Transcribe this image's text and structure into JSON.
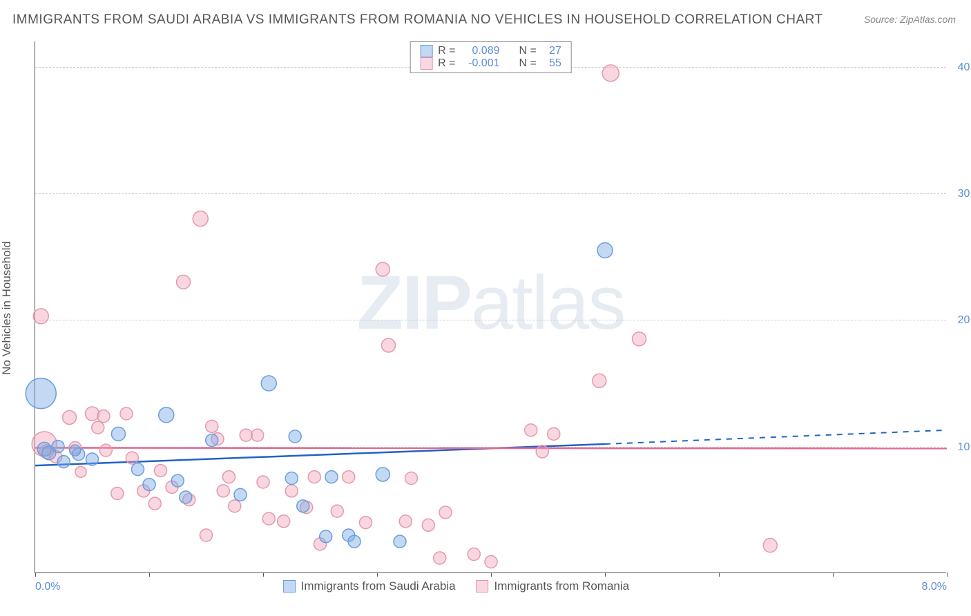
{
  "title": "IMMIGRANTS FROM SAUDI ARABIA VS IMMIGRANTS FROM ROMANIA NO VEHICLES IN HOUSEHOLD CORRELATION CHART",
  "source": "Source: ZipAtlas.com",
  "ylabel": "No Vehicles in Household",
  "watermark_bold": "ZIP",
  "watermark_light": "atlas",
  "chart": {
    "type": "scatter",
    "background_color": "#ffffff",
    "grid_color": "#cccccc",
    "axis_color": "#555555",
    "tick_label_color": "#5b8dd6",
    "label_color": "#555555",
    "xlim": [
      0,
      8
    ],
    "ylim": [
      0,
      42
    ],
    "xticks": [
      0,
      1,
      2,
      3,
      4,
      5,
      6,
      7,
      8
    ],
    "xtick_labels": {
      "0": "0.0%",
      "8": "8.0%"
    },
    "yticks": [
      10,
      20,
      30,
      40
    ],
    "ytick_labels": {
      "10": "10.0%",
      "20": "20.0%",
      "30": "30.0%",
      "40": "40.0%"
    },
    "title_fontsize": 19,
    "label_fontsize": 17,
    "tick_fontsize": 16
  },
  "series": [
    {
      "name": "Immigrants from Saudi Arabia",
      "key": "saudi",
      "fill": "rgba(122,168,228,0.45)",
      "stroke": "#6a9de0",
      "line_color": "#1f63c9",
      "r_value": "0.089",
      "n_value": "27",
      "trend": {
        "x1": 0,
        "y1": 8.5,
        "x2": 5.0,
        "y2": 10.2,
        "dash_x2": 8.0,
        "dash_y2": 11.3
      },
      "points": [
        {
          "x": 0.05,
          "y": 14.2,
          "r": 22
        },
        {
          "x": 0.08,
          "y": 9.8,
          "r": 10
        },
        {
          "x": 0.12,
          "y": 9.5,
          "r": 10
        },
        {
          "x": 0.2,
          "y": 10.0,
          "r": 9
        },
        {
          "x": 0.25,
          "y": 8.8,
          "r": 9
        },
        {
          "x": 0.38,
          "y": 9.4,
          "r": 9
        },
        {
          "x": 0.5,
          "y": 9.0,
          "r": 9
        },
        {
          "x": 0.73,
          "y": 11.0,
          "r": 10
        },
        {
          "x": 0.9,
          "y": 8.2,
          "r": 9
        },
        {
          "x": 1.0,
          "y": 7.0,
          "r": 9
        },
        {
          "x": 1.15,
          "y": 12.5,
          "r": 11
        },
        {
          "x": 1.25,
          "y": 7.3,
          "r": 9
        },
        {
          "x": 1.32,
          "y": 6.0,
          "r": 9
        },
        {
          "x": 1.55,
          "y": 10.5,
          "r": 9
        },
        {
          "x": 1.8,
          "y": 6.2,
          "r": 9
        },
        {
          "x": 2.05,
          "y": 15.0,
          "r": 11
        },
        {
          "x": 2.25,
          "y": 7.5,
          "r": 9
        },
        {
          "x": 2.28,
          "y": 10.8,
          "r": 9
        },
        {
          "x": 2.35,
          "y": 5.3,
          "r": 9
        },
        {
          "x": 2.55,
          "y": 2.9,
          "r": 9
        },
        {
          "x": 2.6,
          "y": 7.6,
          "r": 9
        },
        {
          "x": 2.75,
          "y": 3.0,
          "r": 9
        },
        {
          "x": 2.8,
          "y": 2.5,
          "r": 9
        },
        {
          "x": 3.05,
          "y": 7.8,
          "r": 10
        },
        {
          "x": 3.2,
          "y": 2.5,
          "r": 9
        },
        {
          "x": 5.0,
          "y": 25.5,
          "r": 11
        },
        {
          "x": 0.35,
          "y": 9.7,
          "r": 8
        }
      ]
    },
    {
      "name": "Immigrants from Romania",
      "key": "romania",
      "fill": "rgba(240,160,180,0.42)",
      "stroke": "#e598ad",
      "line_color": "#e36a8e",
      "r_value": "-0.001",
      "n_value": "55",
      "trend": {
        "x1": 0,
        "y1": 9.9,
        "x2": 8.0,
        "y2": 9.85
      },
      "points": [
        {
          "x": 0.05,
          "y": 20.3,
          "r": 11
        },
        {
          "x": 0.08,
          "y": 10.2,
          "r": 18
        },
        {
          "x": 0.1,
          "y": 9.6,
          "r": 10
        },
        {
          "x": 0.18,
          "y": 9.2,
          "r": 9
        },
        {
          "x": 0.3,
          "y": 12.3,
          "r": 10
        },
        {
          "x": 0.35,
          "y": 9.9,
          "r": 9
        },
        {
          "x": 0.5,
          "y": 12.6,
          "r": 10
        },
        {
          "x": 0.55,
          "y": 11.5,
          "r": 9
        },
        {
          "x": 0.6,
          "y": 12.4,
          "r": 9
        },
        {
          "x": 0.62,
          "y": 9.7,
          "r": 9
        },
        {
          "x": 0.72,
          "y": 6.3,
          "r": 9
        },
        {
          "x": 0.8,
          "y": 12.6,
          "r": 9
        },
        {
          "x": 0.85,
          "y": 9.1,
          "r": 9
        },
        {
          "x": 0.95,
          "y": 6.5,
          "r": 9
        },
        {
          "x": 1.05,
          "y": 5.5,
          "r": 9
        },
        {
          "x": 1.1,
          "y": 8.1,
          "r": 9
        },
        {
          "x": 1.2,
          "y": 6.8,
          "r": 9
        },
        {
          "x": 1.3,
          "y": 23.0,
          "r": 10
        },
        {
          "x": 1.35,
          "y": 5.8,
          "r": 9
        },
        {
          "x": 1.45,
          "y": 28.0,
          "r": 11
        },
        {
          "x": 1.5,
          "y": 3.0,
          "r": 9
        },
        {
          "x": 1.55,
          "y": 11.6,
          "r": 9
        },
        {
          "x": 1.6,
          "y": 10.6,
          "r": 9
        },
        {
          "x": 1.65,
          "y": 6.5,
          "r": 9
        },
        {
          "x": 1.7,
          "y": 7.6,
          "r": 9
        },
        {
          "x": 1.75,
          "y": 5.3,
          "r": 9
        },
        {
          "x": 1.85,
          "y": 10.9,
          "r": 9
        },
        {
          "x": 1.95,
          "y": 10.9,
          "r": 9
        },
        {
          "x": 2.0,
          "y": 7.2,
          "r": 9
        },
        {
          "x": 2.05,
          "y": 4.3,
          "r": 9
        },
        {
          "x": 2.18,
          "y": 4.1,
          "r": 9
        },
        {
          "x": 2.25,
          "y": 6.5,
          "r": 9
        },
        {
          "x": 2.38,
          "y": 5.2,
          "r": 9
        },
        {
          "x": 2.45,
          "y": 7.6,
          "r": 9
        },
        {
          "x": 2.5,
          "y": 2.3,
          "r": 9
        },
        {
          "x": 2.65,
          "y": 4.9,
          "r": 9
        },
        {
          "x": 2.75,
          "y": 7.6,
          "r": 9
        },
        {
          "x": 2.9,
          "y": 4.0,
          "r": 9
        },
        {
          "x": 3.05,
          "y": 24.0,
          "r": 10
        },
        {
          "x": 3.1,
          "y": 18.0,
          "r": 10
        },
        {
          "x": 3.25,
          "y": 4.1,
          "r": 9
        },
        {
          "x": 3.3,
          "y": 7.5,
          "r": 9
        },
        {
          "x": 3.45,
          "y": 3.8,
          "r": 9
        },
        {
          "x": 3.55,
          "y": 1.2,
          "r": 9
        },
        {
          "x": 3.6,
          "y": 4.8,
          "r": 9
        },
        {
          "x": 3.85,
          "y": 1.5,
          "r": 9
        },
        {
          "x": 4.0,
          "y": 0.9,
          "r": 9
        },
        {
          "x": 4.35,
          "y": 11.3,
          "r": 9
        },
        {
          "x": 4.45,
          "y": 9.6,
          "r": 9
        },
        {
          "x": 4.55,
          "y": 11.0,
          "r": 9
        },
        {
          "x": 4.95,
          "y": 15.2,
          "r": 10
        },
        {
          "x": 5.05,
          "y": 39.5,
          "r": 12
        },
        {
          "x": 5.3,
          "y": 18.5,
          "r": 10
        },
        {
          "x": 6.45,
          "y": 2.2,
          "r": 10
        },
        {
          "x": 0.4,
          "y": 8.0,
          "r": 8
        }
      ]
    }
  ],
  "legend": {
    "r_label": "R =",
    "n_label": "N ="
  }
}
